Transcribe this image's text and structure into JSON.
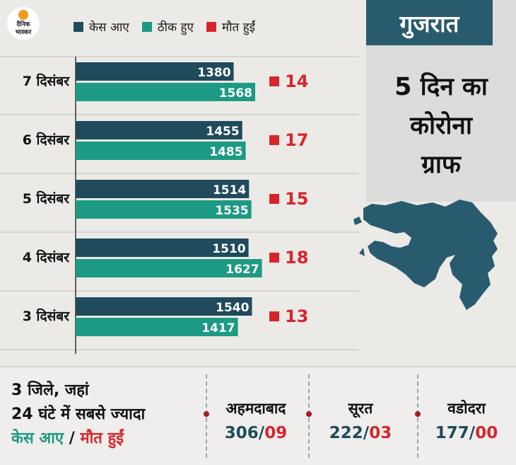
{
  "brand": {
    "logo_text": "दैनिक भास्कर"
  },
  "colors": {
    "cases": "#1f4b5c",
    "recovered": "#1d9a83",
    "deaths": "#d7262b"
  },
  "legend": {
    "cases": "केस आए",
    "recovered": "ठीक हुए",
    "deaths": "मौत हुईं"
  },
  "panel": {
    "state": "गुजरात",
    "title_lines": [
      "5 दिन का",
      "कोरोना",
      "ग्राफ"
    ]
  },
  "chart_data": {
    "type": "bar",
    "orientation": "horizontal",
    "categories": [
      "7 दिसंबर",
      "6 दिसंबर",
      "5 दिसंबर",
      "4 दिसंबर",
      "3 दिसंबर"
    ],
    "series": [
      {
        "name": "केस आए",
        "values": [
          1380,
          1455,
          1514,
          1510,
          1540
        ]
      },
      {
        "name": "ठीक हुए",
        "values": [
          1568,
          1485,
          1535,
          1627,
          1417
        ]
      },
      {
        "name": "मौत हुईं",
        "values": [
          14,
          17,
          15,
          18,
          13
        ]
      }
    ],
    "legend_position": "top"
  },
  "bottom": {
    "headline": [
      "3 जिले, जहां",
      "24 घंटे में सबसे ज्यादा"
    ],
    "sub_cases": "केस आए",
    "sub_sep": " / ",
    "sub_deaths": "मौत हुईं",
    "districts": [
      {
        "name": "अहमदाबाद",
        "cases": "306",
        "sep": "/",
        "deaths": "09"
      },
      {
        "name": "सूरत",
        "cases": "222",
        "sep": "/",
        "deaths": "03"
      },
      {
        "name": "वडोदरा",
        "cases": "177",
        "sep": "/",
        "deaths": "00"
      }
    ]
  }
}
